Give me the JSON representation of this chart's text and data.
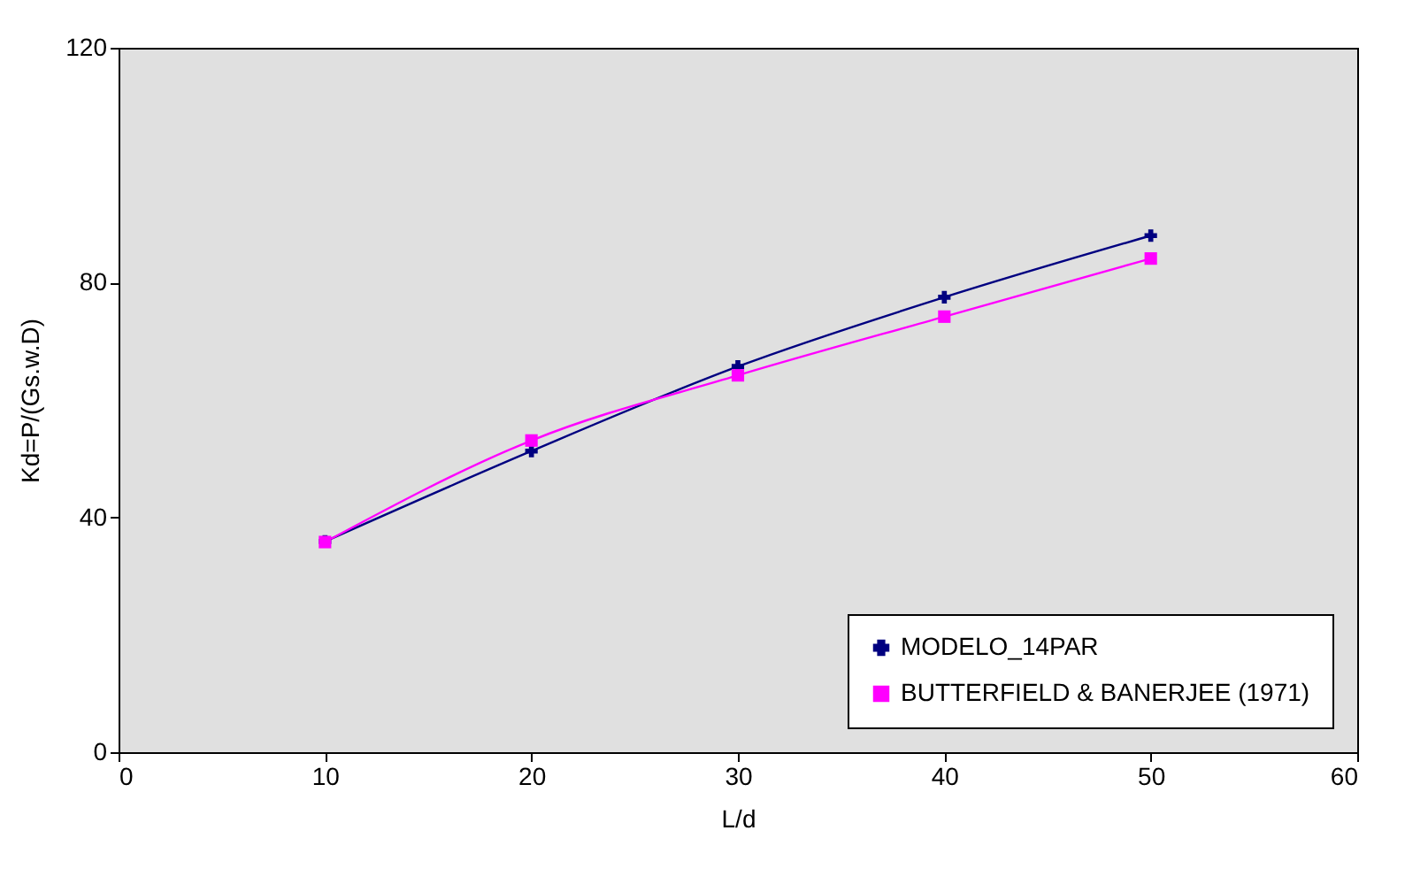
{
  "chart_data": {
    "type": "line",
    "xlabel": "L/d",
    "ylabel": "Kd=P/(Gs.w.D)",
    "x": [
      10,
      20,
      30,
      40,
      50
    ],
    "series": [
      {
        "name": "MODELO_14PAR",
        "color": "#000080",
        "values": [
          35.9,
          51.3,
          65.7,
          77.5,
          88.0
        ],
        "marker": "cross"
      },
      {
        "name": "BUTTERFIELD & BANERJEE (1971)",
        "color": "#ff00ff",
        "values": [
          35.8,
          53.1,
          64.2,
          74.2,
          84.1
        ],
        "marker": "square"
      }
    ],
    "xlim": [
      0,
      60
    ],
    "xticks": [
      0,
      10,
      20,
      30,
      40,
      50,
      60
    ],
    "ylim": [
      0,
      120
    ],
    "yticks": [
      0,
      40,
      80,
      120
    ],
    "grid": false,
    "legend": "bottom right",
    "line_style": "solid"
  }
}
